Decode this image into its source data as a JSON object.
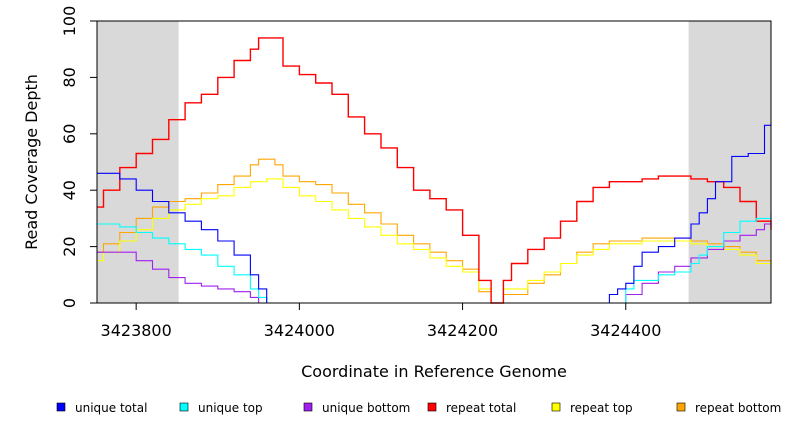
{
  "chart_data": {
    "type": "line",
    "xlabel": "Coordinate in Reference Genome",
    "ylabel": "Read Coverage Depth",
    "xlim": [
      3423752,
      3424578
    ],
    "ylim": [
      0,
      100
    ],
    "x_ticks": [
      {
        "value": 3423800,
        "label": "3423800"
      },
      {
        "value": 3424000,
        "label": "3424000"
      },
      {
        "value": 3424200,
        "label": "3424200"
      },
      {
        "value": 3424400,
        "label": "3424400"
      }
    ],
    "y_ticks": [
      {
        "value": 0,
        "label": "0"
      },
      {
        "value": 20,
        "label": "20"
      },
      {
        "value": 40,
        "label": "40"
      },
      {
        "value": 60,
        "label": "60"
      },
      {
        "value": 80,
        "label": "80"
      },
      {
        "value": 100,
        "label": "100"
      }
    ],
    "shaded_regions": [
      {
        "x0": 3423752,
        "x1": 3423852,
        "color": "#d9d9d9"
      },
      {
        "x0": 3424477,
        "x1": 3424578,
        "color": "#d9d9d9"
      }
    ],
    "series": [
      {
        "name": "unique total",
        "color": "#0000ff",
        "x": [
          3423752,
          3423760,
          3423780,
          3423800,
          3423820,
          3423840,
          3423860,
          3423880,
          3423900,
          3423920,
          3423940,
          3423950,
          3423960,
          3423980,
          3424100,
          3424200,
          3424300,
          3424370,
          3424380,
          3424390,
          3424400,
          3424410,
          3424420,
          3424440,
          3424460,
          3424480,
          3424490,
          3424500,
          3424510,
          3424530,
          3424550,
          3424570,
          3424578
        ],
        "y": [
          46,
          46,
          44,
          40,
          36,
          32,
          29,
          26,
          22,
          17,
          10,
          5,
          0,
          0,
          0,
          0,
          0,
          0,
          3,
          5,
          7,
          13,
          18,
          20,
          23,
          28,
          32,
          37,
          43,
          52,
          53,
          63,
          64
        ]
      },
      {
        "name": "unique top",
        "color": "#00ffff",
        "x": [
          3423752,
          3423780,
          3423800,
          3423820,
          3423840,
          3423860,
          3423880,
          3423900,
          3423920,
          3423940,
          3423950,
          3423960,
          3424100,
          3424380,
          3424400,
          3424410,
          3424440,
          3424460,
          3424480,
          3424490,
          3424500,
          3424520,
          3424540,
          3424560,
          3424578
        ],
        "y": [
          28,
          27,
          25,
          23,
          21,
          19,
          17,
          13,
          10,
          5,
          2,
          0,
          0,
          0,
          5,
          8,
          10,
          11,
          14,
          17,
          20,
          25,
          29,
          30,
          32
        ]
      },
      {
        "name": "unique bottom",
        "color": "#a020f0",
        "x": [
          3423752,
          3423760,
          3423780,
          3423800,
          3423820,
          3423840,
          3423860,
          3423880,
          3423900,
          3423920,
          3423940,
          3423950,
          3424100,
          3424380,
          3424400,
          3424420,
          3424440,
          3424460,
          3424480,
          3424500,
          3424520,
          3424540,
          3424560,
          3424570,
          3424578
        ],
        "y": [
          18,
          18,
          18,
          15,
          12,
          9,
          7,
          6,
          5,
          4,
          2,
          0,
          0,
          0,
          3,
          7,
          11,
          13,
          16,
          19,
          22,
          24,
          26,
          28,
          32
        ]
      },
      {
        "name": "repeat total",
        "color": "#ff0000",
        "x": [
          3423752,
          3423760,
          3423780,
          3423800,
          3423820,
          3423840,
          3423860,
          3423880,
          3423900,
          3423920,
          3423940,
          3423950,
          3423960,
          3423980,
          3424000,
          3424020,
          3424040,
          3424060,
          3424080,
          3424100,
          3424120,
          3424140,
          3424160,
          3424180,
          3424200,
          3424220,
          3424235,
          3424250,
          3424260,
          3424280,
          3424300,
          3424320,
          3424340,
          3424360,
          3424380,
          3424400,
          3424420,
          3424440,
          3424460,
          3424480,
          3424500,
          3424520,
          3424540,
          3424560,
          3424578
        ],
        "y": [
          34,
          40,
          48,
          53,
          58,
          65,
          71,
          74,
          80,
          86,
          90,
          94,
          94,
          84,
          81,
          78,
          74,
          66,
          60,
          55,
          48,
          40,
          37,
          33,
          24,
          8,
          0,
          8,
          14,
          19,
          23,
          29,
          36,
          41,
          43,
          43,
          44,
          45,
          45,
          44,
          43,
          41,
          36,
          29,
          26
        ]
      },
      {
        "name": "repeat top",
        "color": "#ffff00",
        "x": [
          3423752,
          3423760,
          3423780,
          3423800,
          3423820,
          3423840,
          3423860,
          3423880,
          3423900,
          3423920,
          3423940,
          3423960,
          3423980,
          3424000,
          3424020,
          3424040,
          3424060,
          3424080,
          3424100,
          3424120,
          3424140,
          3424160,
          3424180,
          3424200,
          3424220,
          3424235,
          3424250,
          3424280,
          3424300,
          3424320,
          3424340,
          3424360,
          3424380,
          3424400,
          3424420,
          3424440,
          3424460,
          3424480,
          3424500,
          3424520,
          3424540,
          3424560,
          3424578
        ],
        "y": [
          15,
          18,
          22,
          26,
          30,
          33,
          35,
          37,
          38,
          41,
          43,
          44,
          41,
          38,
          36,
          33,
          30,
          27,
          24,
          21,
          19,
          16,
          13,
          11,
          5,
          0,
          5,
          8,
          11,
          14,
          17,
          19,
          21,
          21,
          22,
          22,
          22,
          21,
          20,
          19,
          17,
          14,
          12
        ]
      },
      {
        "name": "repeat bottom",
        "color": "#ffa500",
        "x": [
          3423752,
          3423760,
          3423780,
          3423800,
          3423820,
          3423840,
          3423860,
          3423880,
          3423900,
          3423920,
          3423940,
          3423950,
          3423960,
          3423970,
          3423980,
          3424000,
          3424020,
          3424040,
          3424060,
          3424080,
          3424100,
          3424120,
          3424140,
          3424160,
          3424180,
          3424200,
          3424220,
          3424235,
          3424250,
          3424280,
          3424300,
          3424320,
          3424340,
          3424360,
          3424380,
          3424400,
          3424420,
          3424440,
          3424460,
          3424480,
          3424500,
          3424520,
          3424540,
          3424560,
          3424578
        ],
        "y": [
          18,
          21,
          25,
          30,
          34,
          36,
          37,
          39,
          42,
          45,
          49,
          51,
          51,
          49,
          45,
          43,
          42,
          39,
          35,
          32,
          28,
          24,
          21,
          18,
          15,
          12,
          4,
          0,
          3,
          7,
          10,
          14,
          18,
          21,
          22,
          22,
          23,
          23,
          23,
          22,
          21,
          20,
          18,
          15,
          13
        ]
      }
    ],
    "legend": {
      "position": "bottom",
      "entries": [
        {
          "label": "unique total",
          "color": "#0000ff"
        },
        {
          "label": "unique top",
          "color": "#00ffff"
        },
        {
          "label": "unique bottom",
          "color": "#a020f0"
        },
        {
          "label": "repeat total",
          "color": "#ff0000"
        },
        {
          "label": "repeat top",
          "color": "#ffff00"
        },
        {
          "label": "repeat bottom",
          "color": "#ffa500"
        }
      ]
    }
  }
}
